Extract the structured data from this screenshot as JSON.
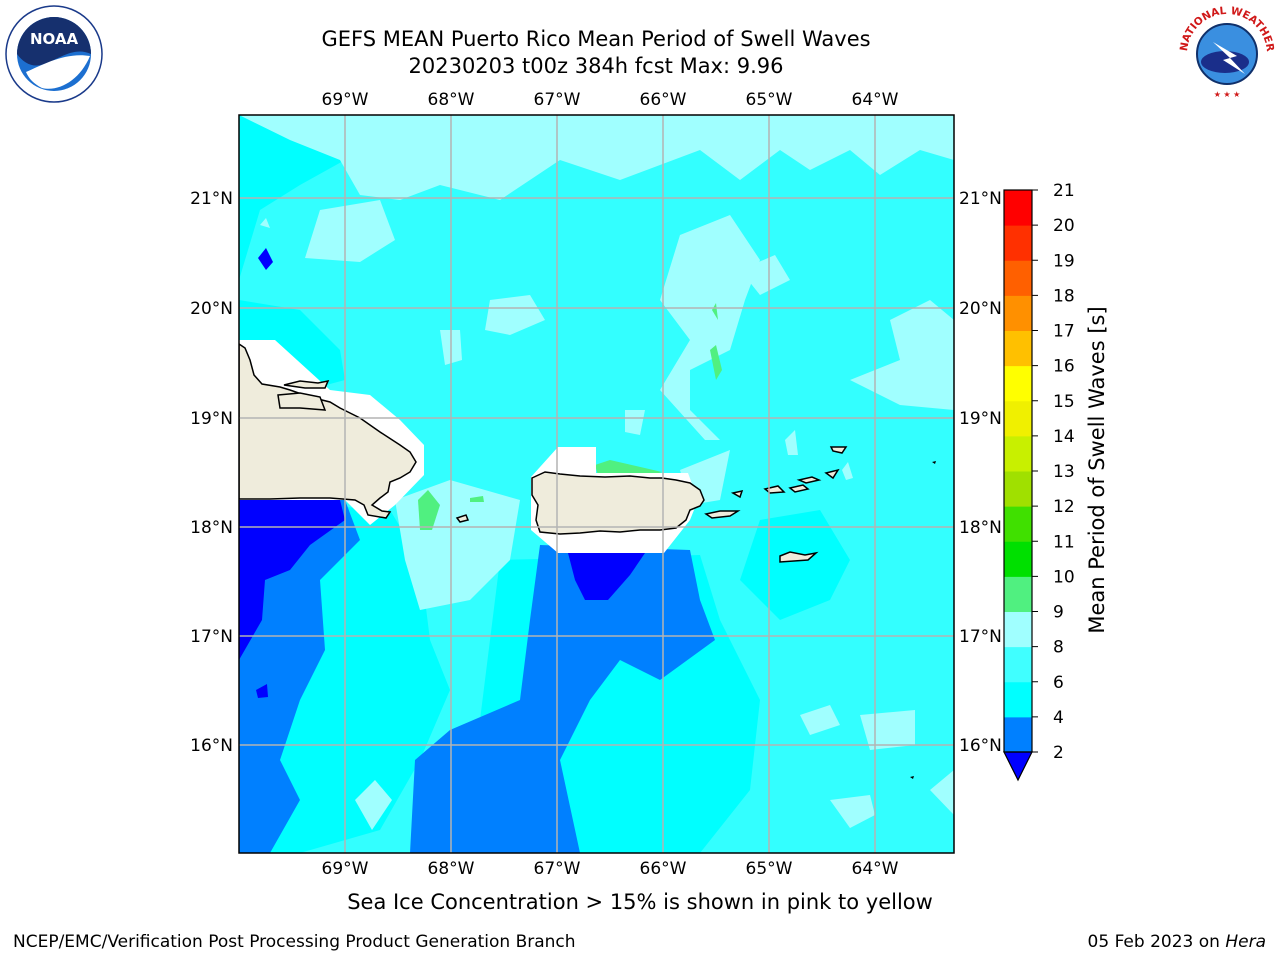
{
  "header": {
    "title_line1": "GEFS MEAN Puerto Rico Mean Period of Swell Waves",
    "title_line2": "20230203 t00z 384h fcst   Max: 9.96"
  },
  "map": {
    "lon_labels": [
      "69°W",
      "68°W",
      "67°W",
      "66°W",
      "65°W",
      "64°W"
    ],
    "lat_labels": [
      "21°N",
      "20°N",
      "19°N",
      "18°N",
      "17°N",
      "16°N"
    ],
    "land_color": "#efecdc",
    "grid_color": "#b4b4b4",
    "base_sea_color": "#33ffff"
  },
  "colorbar": {
    "label": "Mean Period of Swell Waves [s]",
    "levels": [
      "2",
      "4",
      "6",
      "8",
      "9",
      "10",
      "11",
      "12",
      "13",
      "14",
      "15",
      "16",
      "17",
      "18",
      "19",
      "20",
      "21"
    ],
    "colors": [
      "#0000ff",
      "#0080ff",
      "#00ffff",
      "#40ffff",
      "#a0ffff",
      "#50f080",
      "#00e000",
      "#40e000",
      "#a0e000",
      "#c8f000",
      "#f0f000",
      "#ffff00",
      "#ffc000",
      "#ff9000",
      "#ff6000",
      "#ff3000",
      "#ff0000"
    ]
  },
  "footer": {
    "sea_ice_note": "Sea Ice Concentration > 15% is shown in pink to yellow",
    "credit": "NCEP/EMC/Verification Post Processing Product Generation Branch",
    "date_prefix": "05 Feb 2023 on ",
    "machine": "Hera"
  },
  "logos": {
    "noaa_text": "NOAA",
    "nws_ring_text": "NATIONAL WEATHER SERVICE"
  }
}
